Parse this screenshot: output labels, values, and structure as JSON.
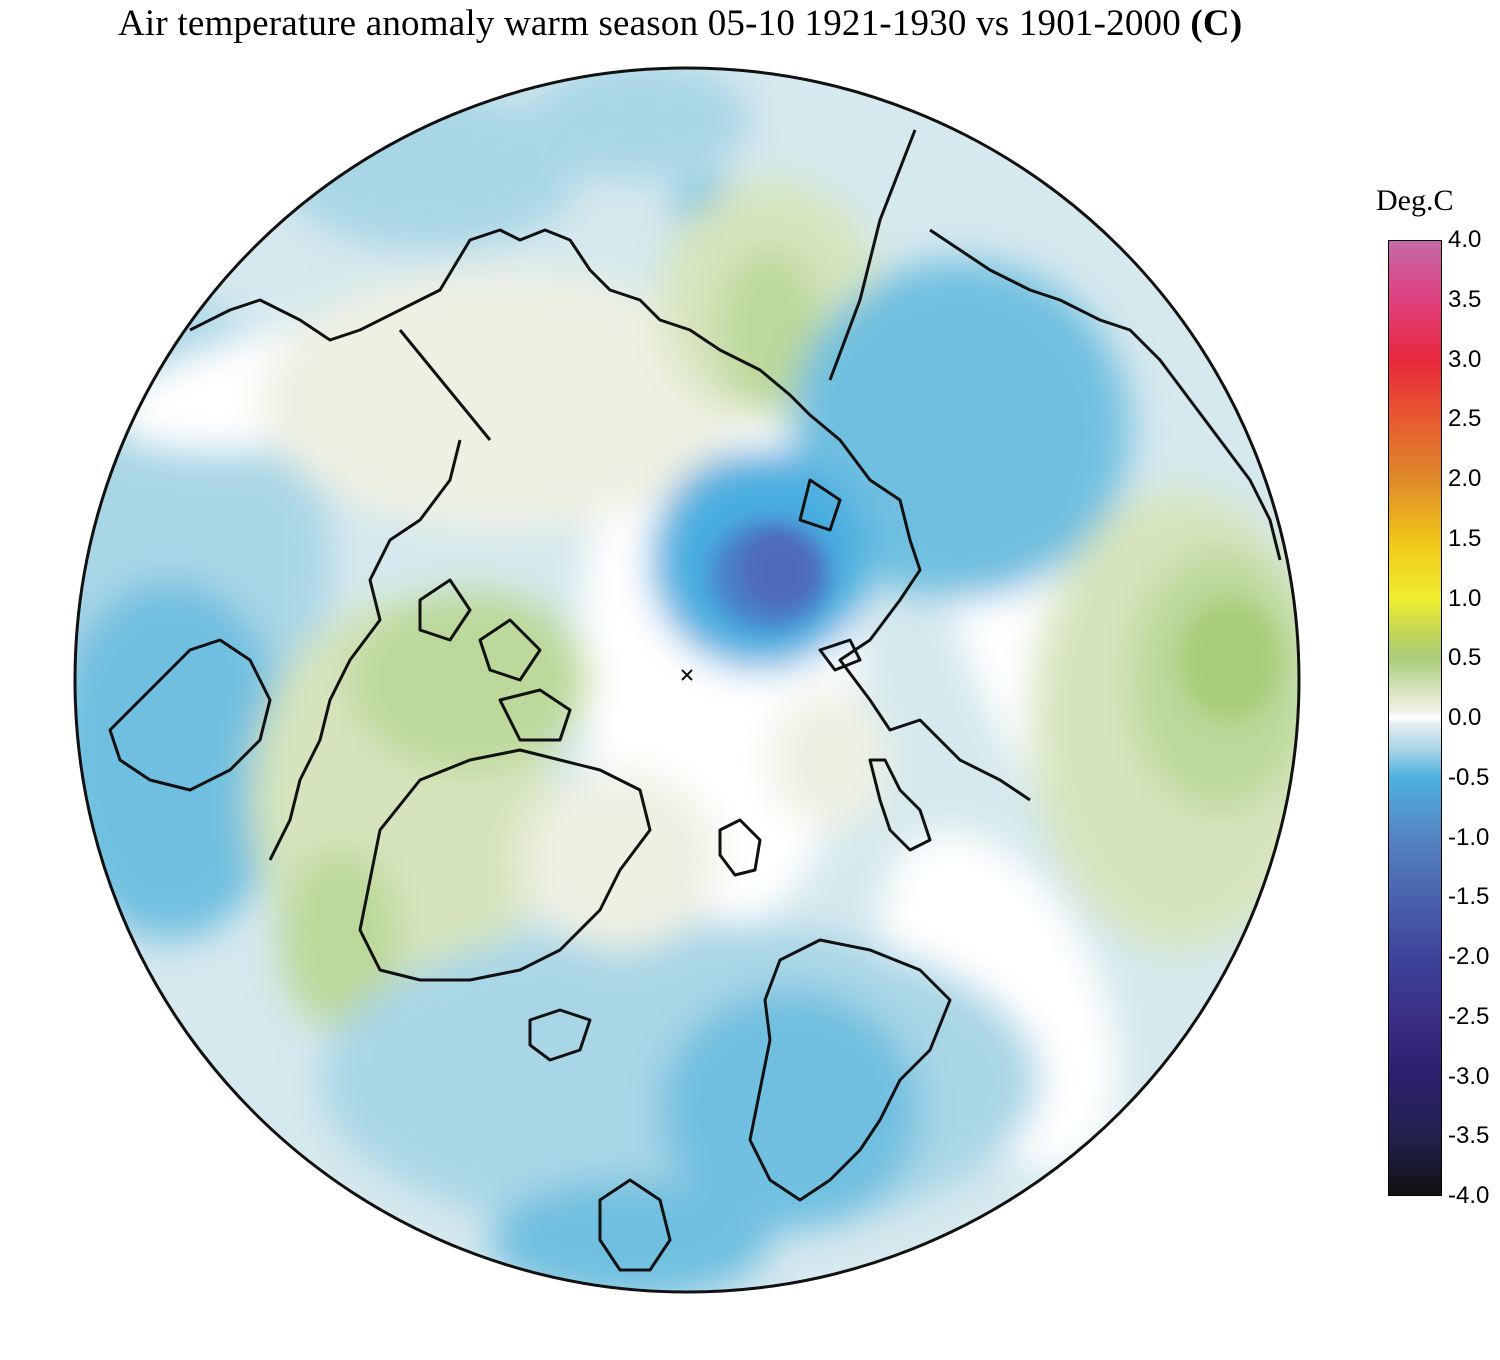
{
  "title": "Air temperature anomaly warm season 05-10 1921-1930 vs 1901-2000",
  "title_unit": "(C)",
  "legend": {
    "unit_label": "Deg.C",
    "min": -4.0,
    "max": 4.0,
    "tick_labels": [
      "4.0",
      "3.5",
      "3.0",
      "2.5",
      "2.0",
      "1.5",
      "1.0",
      "0.5",
      "0.0",
      "-0.5",
      "-1.0",
      "-1.5",
      "-2.0",
      "-2.5",
      "-3.0",
      "-3.5",
      "-4.0"
    ],
    "color_stops": [
      {
        "v": 4.0,
        "c": "#c56aa8"
      },
      {
        "v": 3.5,
        "c": "#e0407f"
      },
      {
        "v": 3.0,
        "c": "#e8283a"
      },
      {
        "v": 2.5,
        "c": "#e85a30"
      },
      {
        "v": 2.0,
        "c": "#de8a2a"
      },
      {
        "v": 1.5,
        "c": "#f0c419"
      },
      {
        "v": 1.0,
        "c": "#f0ee30"
      },
      {
        "v": 0.75,
        "c": "#c8d850"
      },
      {
        "v": 0.5,
        "c": "#a9cd7a"
      },
      {
        "v": 0.25,
        "c": "#d4e2bb"
      },
      {
        "v": 0.05,
        "c": "#f0f2e6"
      },
      {
        "v": 0.0,
        "c": "#ffffff"
      },
      {
        "v": -0.05,
        "c": "#e3eef2"
      },
      {
        "v": -0.25,
        "c": "#aed6e6"
      },
      {
        "v": -0.5,
        "c": "#4db2e0"
      },
      {
        "v": -1.0,
        "c": "#5584c3"
      },
      {
        "v": -1.5,
        "c": "#4a63ad"
      },
      {
        "v": -2.0,
        "c": "#3e449a"
      },
      {
        "v": -2.5,
        "c": "#3a2f85"
      },
      {
        "v": -3.0,
        "c": "#2c1f6e"
      },
      {
        "v": -3.5,
        "c": "#23214d"
      },
      {
        "v": -4.0,
        "c": "#111111"
      }
    ]
  },
  "map": {
    "projection": "north polar stereographic",
    "anomaly_colors": {
      "strong_cold": "#5a5aa8",
      "cold": "#4aaee0",
      "cool": "#6fbfe0",
      "mild_cool": "#a9d6e6",
      "slight_cool": "#d6e9ee",
      "neutral": "#ffffff",
      "slight_warm": "#eef0e2",
      "mild_warm": "#d5e4bc",
      "warm": "#bcd89a",
      "more_warm": "#a6cd78"
    }
  }
}
